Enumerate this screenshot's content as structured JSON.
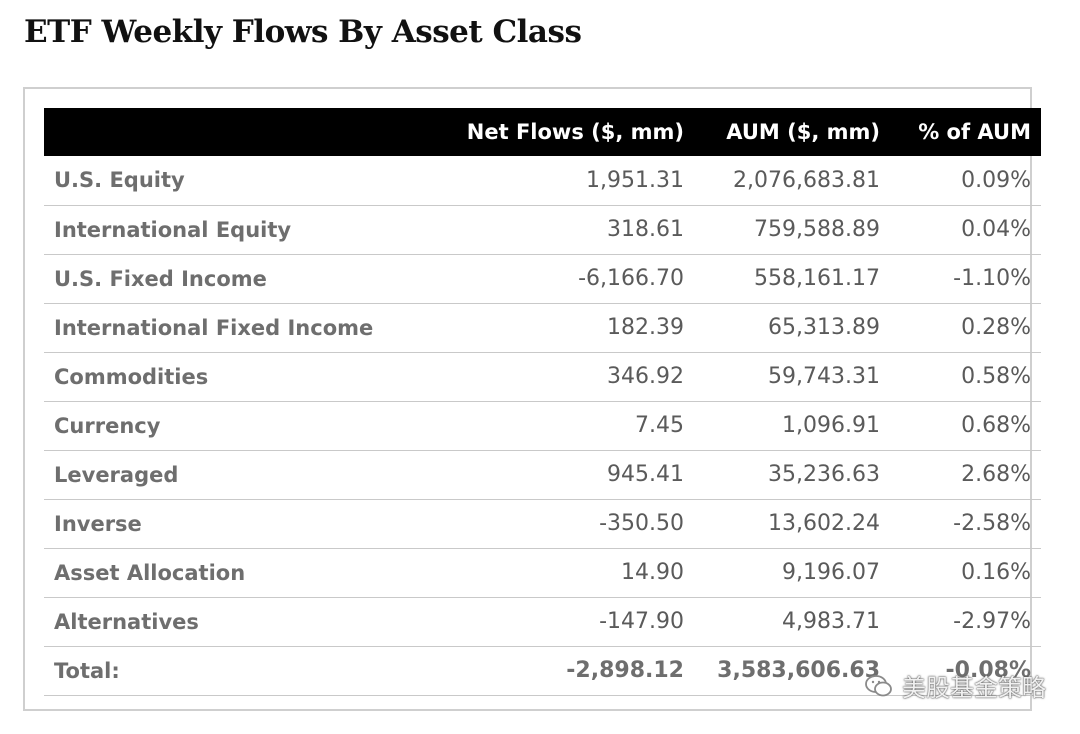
{
  "title": "ETF Weekly Flows By Asset Class",
  "table": {
    "headers": [
      "",
      "Net Flows ($, mm)",
      "AUM ($, mm)",
      "% of AUM"
    ],
    "rows": [
      {
        "name": "U.S. Equity",
        "net_flows": "1,951.31",
        "aum": "2,076,683.81",
        "pct": "0.09%"
      },
      {
        "name": "International Equity",
        "net_flows": "318.61",
        "aum": "759,588.89",
        "pct": "0.04%"
      },
      {
        "name": "U.S. Fixed Income",
        "net_flows": "-6,166.70",
        "aum": "558,161.17",
        "pct": "-1.10%"
      },
      {
        "name": "International Fixed Income",
        "net_flows": "182.39",
        "aum": "65,313.89",
        "pct": "0.28%"
      },
      {
        "name": "Commodities",
        "net_flows": "346.92",
        "aum": "59,743.31",
        "pct": "0.58%"
      },
      {
        "name": "Currency",
        "net_flows": "7.45",
        "aum": "1,096.91",
        "pct": "0.68%"
      },
      {
        "name": "Leveraged",
        "net_flows": "945.41",
        "aum": "35,236.63",
        "pct": "2.68%"
      },
      {
        "name": "Inverse",
        "net_flows": "-350.50",
        "aum": "13,602.24",
        "pct": "-2.58%"
      },
      {
        "name": "Asset Allocation",
        "net_flows": "14.90",
        "aum": "9,196.07",
        "pct": "0.16%"
      },
      {
        "name": "Alternatives",
        "net_flows": "-147.90",
        "aum": "4,983.71",
        "pct": "-2.97%"
      }
    ],
    "total": {
      "name": "Total:",
      "net_flows": "-2,898.12",
      "aum": "3,583,606.63",
      "pct": "-0.08%"
    }
  },
  "watermark": {
    "text": "美股基金策略",
    "icon": "wechat-icon"
  },
  "colors": {
    "header_bg": "#000000",
    "header_text": "#ffffff",
    "row_text": "#5a5a5a",
    "divider": "#c9c9c9"
  }
}
